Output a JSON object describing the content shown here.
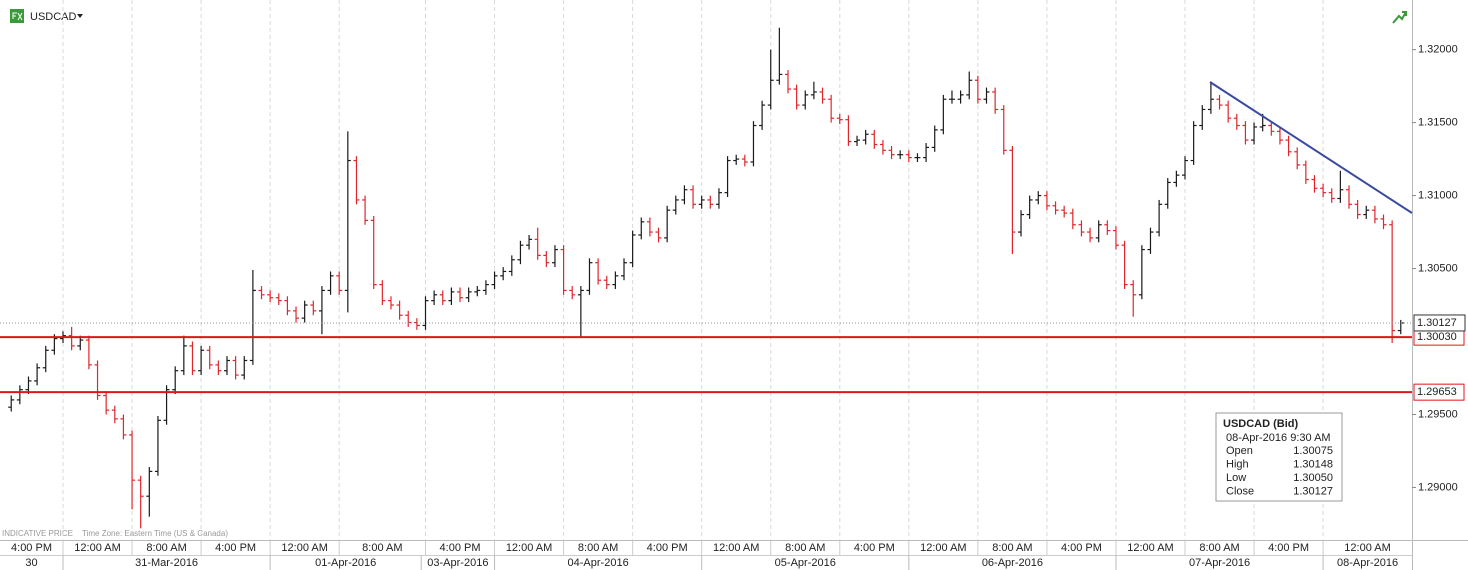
{
  "chart_data": {
    "type": "ohlc",
    "symbol": "USDCAD",
    "up_color": "#1a1a1a",
    "down_color": "#e0262b",
    "xlim": [
      -1.3,
      162.3
    ],
    "ylim": [
      1.2864,
      1.3234
    ],
    "open": [
      1.2955,
      1.296,
      1.2967,
      1.2973,
      1.2982,
      1.2994,
      1.3002,
      1.3004,
      1.2997,
      1.3001,
      1.2984,
      1.2963,
      1.2953,
      1.2947,
      1.2936,
      1.2905,
      1.2894,
      1.2911,
      1.2946,
      1.2967,
      1.298,
      1.2997,
      1.298,
      1.2994,
      1.2984,
      1.298,
      1.2987,
      1.2977,
      1.2987,
      1.3035,
      1.3032,
      1.303,
      1.3028,
      1.3021,
      1.3016,
      1.3025,
      1.3021,
      1.3035,
      1.3045,
      1.3035,
      1.3124,
      1.3097,
      1.3083,
      1.3039,
      1.3028,
      1.3025,
      1.3018,
      1.3013,
      1.3011,
      1.3028,
      1.3032,
      1.3028,
      1.3034,
      1.303,
      1.3034,
      1.3035,
      1.3039,
      1.3045,
      1.3048,
      1.3056,
      1.3066,
      1.307,
      1.3059,
      1.3054,
      1.3063,
      1.3035,
      1.3032,
      1.3035,
      1.3054,
      1.3042,
      1.3039,
      1.3045,
      1.3054,
      1.3073,
      1.3082,
      1.3075,
      1.3071,
      1.309,
      1.3097,
      1.3104,
      1.3094,
      1.3097,
      1.3094,
      1.3102,
      1.3124,
      1.3125,
      1.3123,
      1.3148,
      1.3162,
      1.3179,
      1.3183,
      1.3173,
      1.3162,
      1.3169,
      1.3171,
      1.3166,
      1.3153,
      1.3152,
      1.3137,
      1.3138,
      1.3142,
      1.3135,
      1.3131,
      1.3128,
      1.3128,
      1.3126,
      1.3126,
      1.3133,
      1.3145,
      1.3166,
      1.3166,
      1.3169,
      1.3179,
      1.3166,
      1.3171,
      1.3159,
      1.3131,
      1.3075,
      1.3087,
      1.3097,
      1.31,
      1.3093,
      1.309,
      1.3088,
      1.308,
      1.3075,
      1.3071,
      1.308,
      1.3076,
      1.3066,
      1.3039,
      1.3032,
      1.3063,
      1.3075,
      1.3094,
      1.3109,
      1.3114,
      1.3124,
      1.3148,
      1.3159,
      1.3166,
      1.3162,
      1.3153,
      1.3148,
      1.3138,
      1.3147,
      1.3148,
      1.3144,
      1.3138,
      1.313,
      1.3121,
      1.3111,
      1.3105,
      1.3102,
      1.3098,
      1.3104,
      1.3094,
      1.3087,
      1.309,
      1.3084,
      1.308,
      1.30075
    ],
    "high": [
      1.2963,
      1.297,
      1.2976,
      1.2985,
      1.2997,
      1.3005,
      1.3007,
      1.301,
      1.3004,
      1.3004,
      1.2987,
      1.2966,
      1.2956,
      1.295,
      1.2939,
      1.2908,
      1.2914,
      1.2949,
      1.297,
      1.2983,
      1.3004,
      1.3,
      1.2997,
      1.2997,
      1.2987,
      1.299,
      1.299,
      1.299,
      1.3049,
      1.3038,
      1.3035,
      1.3033,
      1.3031,
      1.3024,
      1.3028,
      1.3028,
      1.3038,
      1.3048,
      1.3048,
      1.3144,
      1.3127,
      1.31,
      1.3086,
      1.3042,
      1.3031,
      1.3028,
      1.3021,
      1.3016,
      1.3031,
      1.3035,
      1.3035,
      1.3037,
      1.3037,
      1.3037,
      1.3038,
      1.3042,
      1.3048,
      1.3051,
      1.3059,
      1.3069,
      1.3073,
      1.3078,
      1.3062,
      1.3066,
      1.3066,
      1.3038,
      1.3038,
      1.3057,
      1.3057,
      1.3045,
      1.3048,
      1.3057,
      1.3076,
      1.3085,
      1.3085,
      1.3078,
      1.3093,
      1.31,
      1.3107,
      1.3107,
      1.31,
      1.31,
      1.3105,
      1.3127,
      1.3128,
      1.3128,
      1.3151,
      1.3165,
      1.32,
      1.3215,
      1.3186,
      1.3176,
      1.3172,
      1.3178,
      1.3174,
      1.3169,
      1.3156,
      1.3155,
      1.3141,
      1.3145,
      1.3145,
      1.3138,
      1.3134,
      1.3131,
      1.3131,
      1.3129,
      1.3136,
      1.3148,
      1.3169,
      1.3172,
      1.3172,
      1.3185,
      1.3182,
      1.3174,
      1.3174,
      1.3162,
      1.3134,
      1.309,
      1.31,
      1.3103,
      1.3103,
      1.3096,
      1.3093,
      1.3091,
      1.3083,
      1.3078,
      1.3083,
      1.3083,
      1.3079,
      1.3069,
      1.3042,
      1.3066,
      1.3078,
      1.3097,
      1.3112,
      1.3117,
      1.3127,
      1.3151,
      1.3162,
      1.3178,
      1.3169,
      1.3165,
      1.3156,
      1.3151,
      1.315,
      1.3156,
      1.3151,
      1.3147,
      1.3141,
      1.3133,
      1.3124,
      1.3114,
      1.3108,
      1.3105,
      1.3117,
      1.3107,
      1.3097,
      1.3093,
      1.3093,
      1.3087,
      1.3083,
      1.30148
    ],
    "low": [
      1.2952,
      1.2957,
      1.2964,
      1.297,
      1.2979,
      1.2991,
      1.2999,
      1.2994,
      1.2994,
      1.2981,
      1.296,
      1.295,
      1.2944,
      1.2933,
      1.2885,
      1.2872,
      1.288,
      1.2908,
      1.2943,
      1.2964,
      1.2977,
      1.2977,
      1.2977,
      1.2981,
      1.2977,
      1.2977,
      1.2974,
      1.2974,
      1.2984,
      1.3029,
      1.3027,
      1.3025,
      1.3018,
      1.3013,
      1.3013,
      1.3018,
      1.3005,
      1.3032,
      1.3032,
      1.302,
      1.3094,
      1.308,
      1.3036,
      1.3025,
      1.3022,
      1.3015,
      1.301,
      1.3008,
      1.3008,
      1.3025,
      1.3025,
      1.3025,
      1.3027,
      1.3027,
      1.3031,
      1.3032,
      1.3036,
      1.3042,
      1.3045,
      1.3053,
      1.3063,
      1.3056,
      1.3051,
      1.3051,
      1.3032,
      1.3029,
      1.3003,
      1.3032,
      1.3039,
      1.3036,
      1.3036,
      1.3042,
      1.3051,
      1.307,
      1.3072,
      1.3068,
      1.3068,
      1.3087,
      1.3094,
      1.3091,
      1.3091,
      1.3091,
      1.3091,
      1.3099,
      1.3121,
      1.312,
      1.312,
      1.3145,
      1.3159,
      1.3176,
      1.317,
      1.3159,
      1.3159,
      1.3166,
      1.3163,
      1.315,
      1.3149,
      1.3134,
      1.3134,
      1.3135,
      1.3132,
      1.3128,
      1.3125,
      1.3125,
      1.3123,
      1.3123,
      1.3123,
      1.313,
      1.3142,
      1.3163,
      1.3163,
      1.3166,
      1.3163,
      1.3163,
      1.3156,
      1.3128,
      1.306,
      1.3072,
      1.3084,
      1.3094,
      1.309,
      1.3087,
      1.3085,
      1.3077,
      1.3072,
      1.3068,
      1.3068,
      1.3073,
      1.3063,
      1.3036,
      1.3017,
      1.3029,
      1.306,
      1.3072,
      1.3091,
      1.3106,
      1.3111,
      1.3121,
      1.3145,
      1.3156,
      1.3159,
      1.315,
      1.3145,
      1.3135,
      1.3135,
      1.3144,
      1.3141,
      1.3135,
      1.3127,
      1.3118,
      1.3108,
      1.3102,
      1.3099,
      1.3095,
      1.3095,
      1.3091,
      1.3084,
      1.3084,
      1.3081,
      1.3077,
      1.2999,
      1.3005
    ],
    "close": [
      1.296,
      1.2967,
      1.2973,
      1.2982,
      1.2994,
      1.3002,
      1.3004,
      1.2997,
      1.3001,
      1.2984,
      1.2963,
      1.2953,
      1.2947,
      1.2936,
      1.2905,
      1.2894,
      1.2911,
      1.2946,
      1.2967,
      1.298,
      1.2997,
      1.298,
      1.2994,
      1.2984,
      1.298,
      1.2987,
      1.2977,
      1.2987,
      1.3035,
      1.3032,
      1.303,
      1.3028,
      1.3021,
      1.3016,
      1.3025,
      1.3021,
      1.3035,
      1.3045,
      1.3035,
      1.3124,
      1.3097,
      1.3083,
      1.3039,
      1.3028,
      1.3025,
      1.3018,
      1.3013,
      1.3011,
      1.3028,
      1.3032,
      1.3028,
      1.3034,
      1.303,
      1.3034,
      1.3035,
      1.3039,
      1.3045,
      1.3048,
      1.3056,
      1.3066,
      1.307,
      1.3059,
      1.3054,
      1.3063,
      1.3035,
      1.3032,
      1.3035,
      1.3054,
      1.3042,
      1.3039,
      1.3045,
      1.3054,
      1.3073,
      1.3082,
      1.3075,
      1.3071,
      1.309,
      1.3097,
      1.3104,
      1.3094,
      1.3097,
      1.3094,
      1.3102,
      1.3124,
      1.3125,
      1.3123,
      1.3148,
      1.3162,
      1.3179,
      1.3183,
      1.3173,
      1.3162,
      1.3169,
      1.3171,
      1.3166,
      1.3153,
      1.3152,
      1.3137,
      1.3138,
      1.3142,
      1.3135,
      1.3131,
      1.3128,
      1.3128,
      1.3126,
      1.3126,
      1.3133,
      1.3145,
      1.3166,
      1.3166,
      1.3169,
      1.3179,
      1.3166,
      1.3171,
      1.3159,
      1.3131,
      1.3075,
      1.3087,
      1.3097,
      1.31,
      1.3093,
      1.309,
      1.3088,
      1.308,
      1.3075,
      1.3071,
      1.308,
      1.3076,
      1.3066,
      1.3039,
      1.3032,
      1.3063,
      1.3075,
      1.3094,
      1.3109,
      1.3114,
      1.3124,
      1.3148,
      1.3159,
      1.3166,
      1.3162,
      1.3153,
      1.3148,
      1.3138,
      1.3147,
      1.3148,
      1.3144,
      1.3138,
      1.313,
      1.3121,
      1.3111,
      1.3105,
      1.3102,
      1.3098,
      1.3104,
      1.3094,
      1.3087,
      1.309,
      1.3084,
      1.308,
      1.30075,
      1.30127
    ],
    "xticks": [
      {
        "value": -2,
        "label": "4:00 PM"
      },
      {
        "value": 6,
        "label": "12:00 AM"
      },
      {
        "value": 14,
        "label": "8:00 AM"
      },
      {
        "value": 22,
        "label": "4:00 PM"
      },
      {
        "value": 30,
        "label": "12:00 AM"
      },
      {
        "value": 38,
        "label": "8:00 AM"
      },
      {
        "value": 48,
        "label": "4:00 PM"
      },
      {
        "value": 56,
        "label": "12:00 AM"
      },
      {
        "value": 64,
        "label": "8:00 AM"
      },
      {
        "value": 72,
        "label": "4:00 PM"
      },
      {
        "value": 80,
        "label": "12:00 AM"
      },
      {
        "value": 88,
        "label": "8:00 AM"
      },
      {
        "value": 96,
        "label": "4:00 PM"
      },
      {
        "value": 104,
        "label": "12:00 AM"
      },
      {
        "value": 112,
        "label": "8:00 AM"
      },
      {
        "value": 120,
        "label": "4:00 PM"
      },
      {
        "value": 128,
        "label": "12:00 AM"
      },
      {
        "value": 136,
        "label": "8:00 AM"
      },
      {
        "value": 144,
        "label": "4:00 PM"
      },
      {
        "value": 152,
        "label": "12:00 AM"
      }
    ],
    "date_ticks": [
      {
        "value": -2,
        "label": "30"
      },
      {
        "value": 6,
        "label": "31-Mar-2016"
      },
      {
        "value": 30,
        "label": "01-Apr-2016"
      },
      {
        "value": 47.5,
        "label": "03-Apr-2016"
      },
      {
        "value": 56,
        "label": "04-Apr-2016"
      },
      {
        "value": 80,
        "label": "05-Apr-2016"
      },
      {
        "value": 104,
        "label": "06-Apr-2016"
      },
      {
        "value": 128,
        "label": "07-Apr-2016"
      },
      {
        "value": 152,
        "label": "08-Apr-2016"
      }
    ],
    "yticks": [
      {
        "value": 1.29,
        "label": "1.29000"
      },
      {
        "value": 1.295,
        "label": "1.29500"
      },
      {
        "value": 1.305,
        "label": "1.30500"
      },
      {
        "value": 1.31,
        "label": "1.31000"
      },
      {
        "value": 1.315,
        "label": "1.31500"
      },
      {
        "value": 1.32,
        "label": "1.32000"
      }
    ],
    "levels": [
      {
        "value": 1.3003,
        "label": "1.30030",
        "color": "#e0141a"
      },
      {
        "value": 1.29653,
        "color": "#e0141a"
      }
    ],
    "last_price": 1.30127,
    "footnote": "INDICATIVE PRICE",
    "timezone": "Time Zone: Eastern Time (US & Canada)",
    "tooltip": {
      "title": "USDCAD (Bid)",
      "datetime": "08-Apr-2016 9:30 AM",
      "rows": [
        [
          "Open",
          "1.30075"
        ],
        [
          "High",
          "1.30148"
        ],
        [
          "Low",
          "1.30050"
        ],
        [
          "Close",
          "1.30127"
        ]
      ]
    }
  }
}
